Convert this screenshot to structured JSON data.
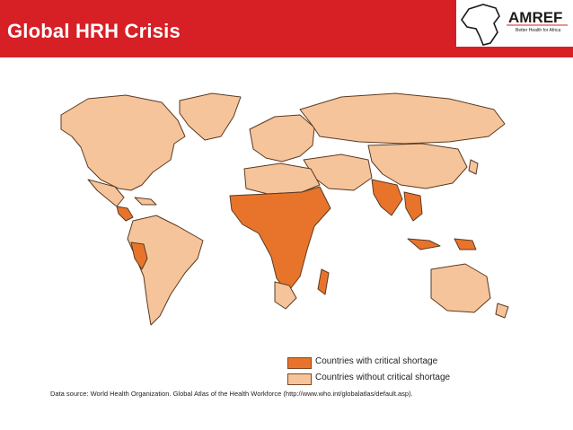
{
  "slide": {
    "title": "Global HRH Crisis"
  },
  "logo": {
    "name": "AMREF",
    "tagline": "Better Health for Africa",
    "icon": "africa-map-icon"
  },
  "legend": {
    "items": [
      {
        "label": "Countries with critical shortage",
        "color": "#e8742c"
      },
      {
        "label": "Countries without critical shortage",
        "color": "#f6c49a"
      }
    ]
  },
  "source": "Data source: World Health Organization. Global Atlas of the Health Workforce (http://www.who.int/globalatlas/default.asp).",
  "colors": {
    "header": "#d71f26",
    "critical": "#e8742c",
    "non_critical": "#f6c49a",
    "border": "#5a3a22"
  }
}
